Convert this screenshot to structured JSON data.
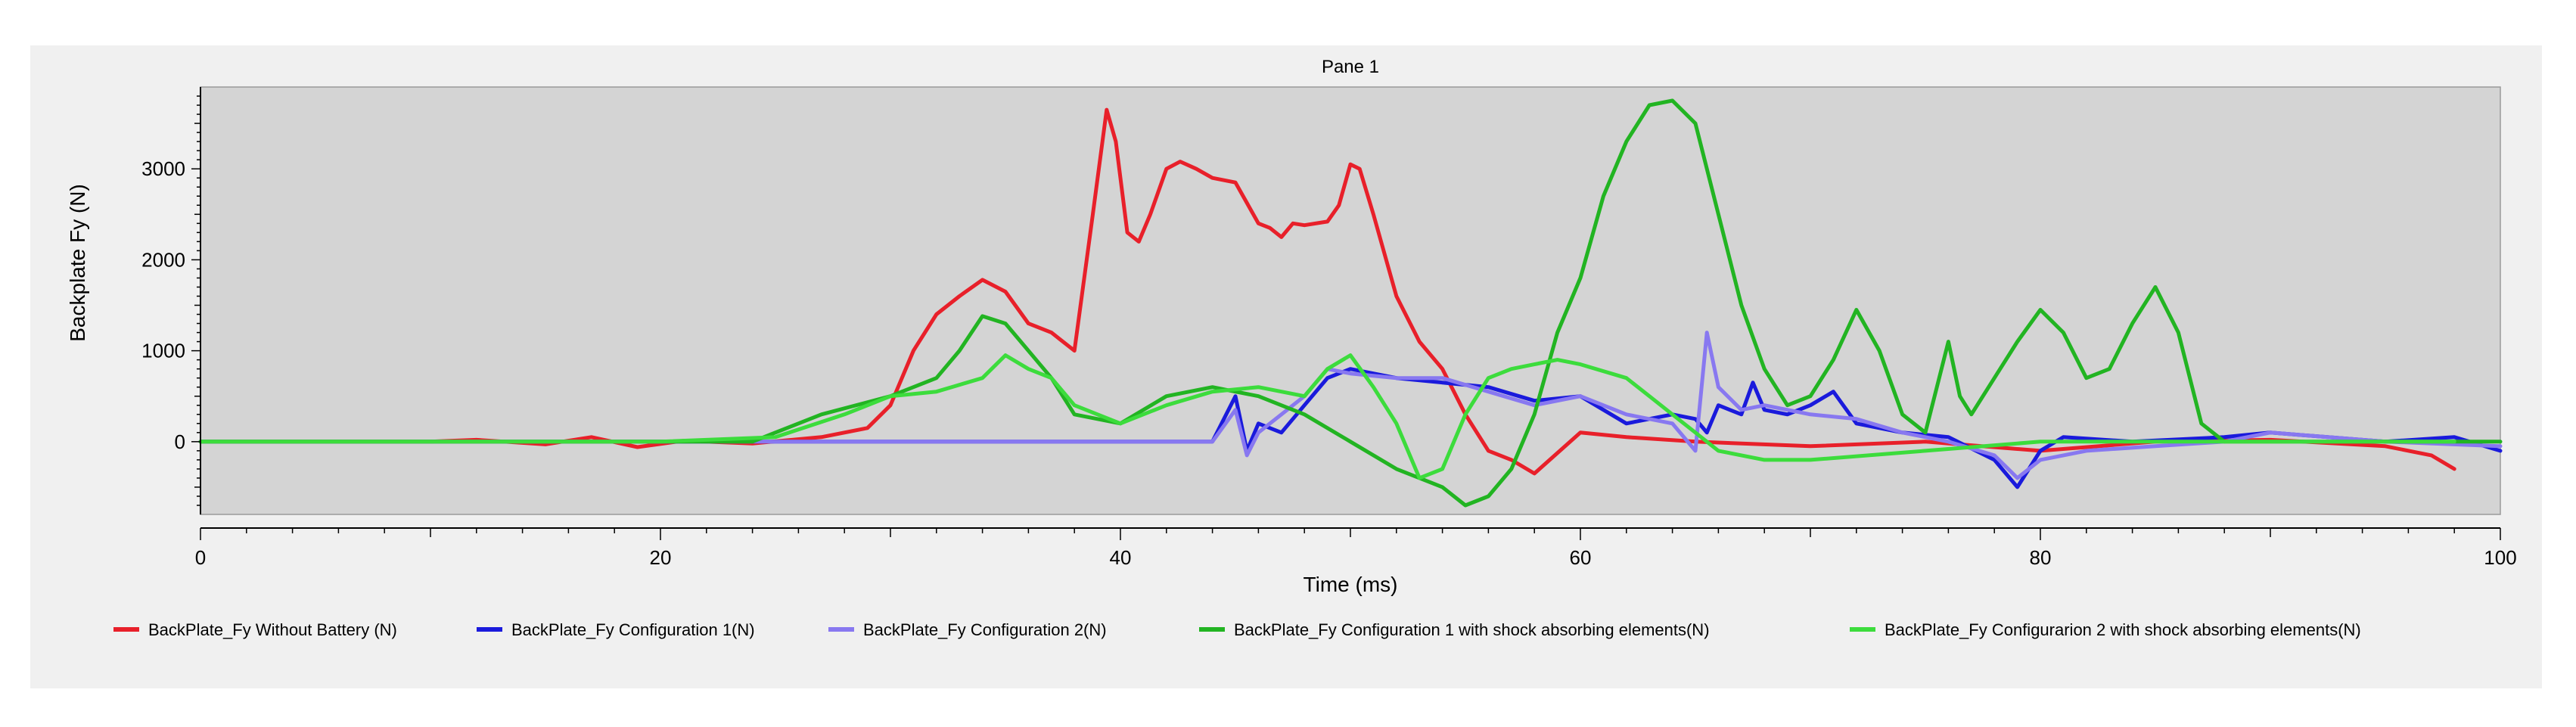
{
  "chart_data": {
    "type": "line",
    "title": "Pane 1",
    "xlabel": "Time (ms)",
    "ylabel": "Backplate Fy (N)",
    "xlim": [
      0,
      100
    ],
    "ylim": [
      -800,
      3900
    ],
    "xticks": [
      0,
      20,
      40,
      60,
      80,
      100
    ],
    "yticks": [
      0,
      1000,
      2000,
      3000
    ],
    "xtick_labels": [
      "0",
      "20",
      "40",
      "60",
      "80",
      "100"
    ],
    "ytick_labels": [
      "0",
      "1000",
      "2000",
      "3000"
    ],
    "grid": false,
    "legend_position": "bottom",
    "plot_background": "#d4d4d4",
    "series": [
      {
        "name": "BackPlate_Fy Without Battery (N)",
        "color": "#e8202a",
        "x": [
          0,
          10,
          12,
          15,
          17,
          19,
          21,
          24,
          27,
          29,
          30,
          31,
          32,
          33,
          34,
          35,
          36,
          37,
          38,
          38.8,
          39.4,
          39.8,
          40.3,
          40.8,
          41.3,
          42,
          42.6,
          43.3,
          44,
          45,
          46,
          46.5,
          47,
          47.5,
          48,
          49,
          49.5,
          50,
          50.4,
          51,
          52,
          53,
          54,
          55,
          56,
          57,
          58,
          60,
          62,
          65,
          70,
          75,
          80,
          85,
          90,
          95,
          97,
          98
        ],
        "y": [
          0,
          0,
          20,
          -30,
          50,
          -60,
          10,
          -20,
          50,
          150,
          400,
          1000,
          1400,
          1600,
          1780,
          1650,
          1300,
          1200,
          1000,
          2500,
          3650,
          3300,
          2300,
          2200,
          2500,
          3000,
          3080,
          3000,
          2900,
          2850,
          2400,
          2350,
          2250,
          2400,
          2380,
          2420,
          2600,
          3050,
          3000,
          2500,
          1600,
          1100,
          800,
          300,
          -100,
          -200,
          -350,
          100,
          50,
          0,
          -50,
          0,
          -100,
          0,
          20,
          -50,
          -150,
          -300
        ]
      },
      {
        "name": "BackPlate_Fy Configuration 1(N)",
        "color": "#1a1adc",
        "x": [
          0,
          20,
          30,
          40,
          44,
          45,
          45.5,
          46,
          47,
          48,
          49,
          50,
          52,
          54,
          56,
          58,
          60,
          62,
          64,
          65,
          65.5,
          66,
          67,
          67.5,
          68,
          69,
          70,
          71,
          72,
          74,
          76,
          78,
          79,
          80,
          81,
          84,
          88,
          90,
          95,
          98,
          100
        ],
        "y": [
          0,
          0,
          0,
          0,
          0,
          500,
          -100,
          200,
          100,
          400,
          700,
          800,
          700,
          650,
          600,
          450,
          500,
          200,
          300,
          250,
          100,
          400,
          300,
          650,
          350,
          300,
          400,
          550,
          200,
          100,
          50,
          -200,
          -500,
          -100,
          50,
          0,
          50,
          100,
          0,
          50,
          -100
        ]
      },
      {
        "name": "BackPlate_Fy Configuration 2(N)",
        "color": "#8878f0",
        "x": [
          0,
          20,
          30,
          40,
          44,
          45,
          45.5,
          46,
          47,
          48,
          49,
          50,
          52,
          54,
          56,
          58,
          60,
          62,
          64,
          65,
          65.5,
          66,
          67,
          68,
          70,
          72,
          74,
          76,
          78,
          79,
          80,
          82,
          85,
          88,
          90,
          95,
          100
        ],
        "y": [
          0,
          0,
          0,
          0,
          0,
          350,
          -150,
          100,
          300,
          500,
          800,
          750,
          700,
          700,
          550,
          400,
          500,
          300,
          200,
          -100,
          1200,
          600,
          350,
          400,
          300,
          250,
          100,
          0,
          -150,
          -400,
          -200,
          -100,
          -50,
          0,
          100,
          0,
          -50
        ]
      },
      {
        "name": "BackPlate_Fy Configuration 1 with shock absorbing elements(N)",
        "color": "#22b422",
        "x": [
          0,
          20,
          24,
          26,
          27,
          30,
          32,
          33,
          34,
          35,
          36,
          37,
          38,
          40,
          42,
          44,
          46,
          48,
          50,
          52,
          54,
          55,
          56,
          57,
          58,
          59,
          60,
          61,
          62,
          63,
          64,
          65,
          66,
          67,
          68,
          69,
          70,
          71,
          72,
          73,
          74,
          75,
          76,
          76.5,
          77,
          78,
          79,
          80,
          81,
          82,
          83,
          84,
          85,
          86,
          87,
          88,
          90,
          95,
          100
        ],
        "y": [
          0,
          0,
          0,
          200,
          300,
          500,
          700,
          1000,
          1380,
          1300,
          1000,
          700,
          300,
          200,
          500,
          600,
          500,
          300,
          0,
          -300,
          -500,
          -700,
          -600,
          -300,
          300,
          1200,
          1800,
          2700,
          3300,
          3700,
          3750,
          3500,
          2500,
          1500,
          800,
          400,
          500,
          900,
          1450,
          1000,
          300,
          100,
          1100,
          500,
          300,
          700,
          1100,
          1450,
          1200,
          700,
          800,
          1300,
          1700,
          1200,
          200,
          0,
          0,
          0,
          0
        ]
      },
      {
        "name": "BackPlate_Fy Configurarion 2 with shock absorbing elements(N)",
        "color": "#3cdc3c",
        "x": [
          0,
          20,
          25,
          28,
          30,
          32,
          34,
          35,
          36,
          37,
          38,
          40,
          42,
          44,
          46,
          48,
          49,
          50,
          51,
          52,
          53,
          54,
          55,
          56,
          57,
          58,
          59,
          60,
          62,
          63,
          64,
          65,
          66,
          68,
          70,
          75,
          80,
          85,
          90,
          95,
          98
        ],
        "y": [
          0,
          0,
          50,
          300,
          500,
          550,
          700,
          950,
          800,
          700,
          400,
          200,
          400,
          550,
          600,
          500,
          800,
          950,
          600,
          200,
          -400,
          -300,
          300,
          700,
          800,
          850,
          900,
          850,
          700,
          500,
          300,
          100,
          -100,
          -200,
          -200,
          -100,
          0,
          0,
          0,
          0,
          0
        ]
      }
    ]
  }
}
